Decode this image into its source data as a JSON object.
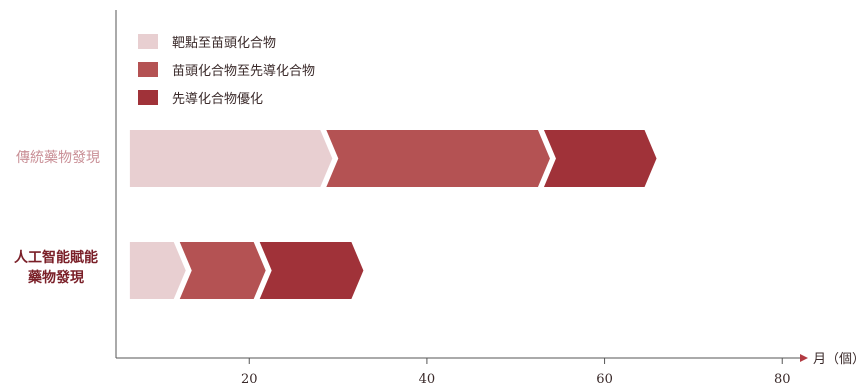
{
  "chart_data": {
    "type": "bar",
    "orientation": "horizontal",
    "stacked": true,
    "xlabel": "月（個）",
    "xlim": [
      5,
      82
    ],
    "xticks": [
      20,
      40,
      60,
      80
    ],
    "grid": false,
    "legend_position": "top-left",
    "categories": [
      "傳統藥物發現",
      "人工智能賦能藥物發現"
    ],
    "series": [
      {
        "name": "靶點至苗頭化合物",
        "color": "#e8cfd1",
        "ranges": [
          [
            6,
            28
          ],
          [
            6,
            11.5
          ]
        ]
      },
      {
        "name": "苗頭化合物至先導化合物",
        "color": "#b45253",
        "ranges": [
          [
            28,
            52.5
          ],
          [
            11.5,
            20.5
          ]
        ]
      },
      {
        "name": "先導化合物優化",
        "color": "#a03239",
        "ranges": [
          [
            52.5,
            64.5
          ],
          [
            20.5,
            31.5
          ]
        ]
      }
    ]
  },
  "labels": {
    "traditional": "傳統藥物發現",
    "ai_line1": "人工智能賦能",
    "ai_line2": "藥物發現"
  }
}
